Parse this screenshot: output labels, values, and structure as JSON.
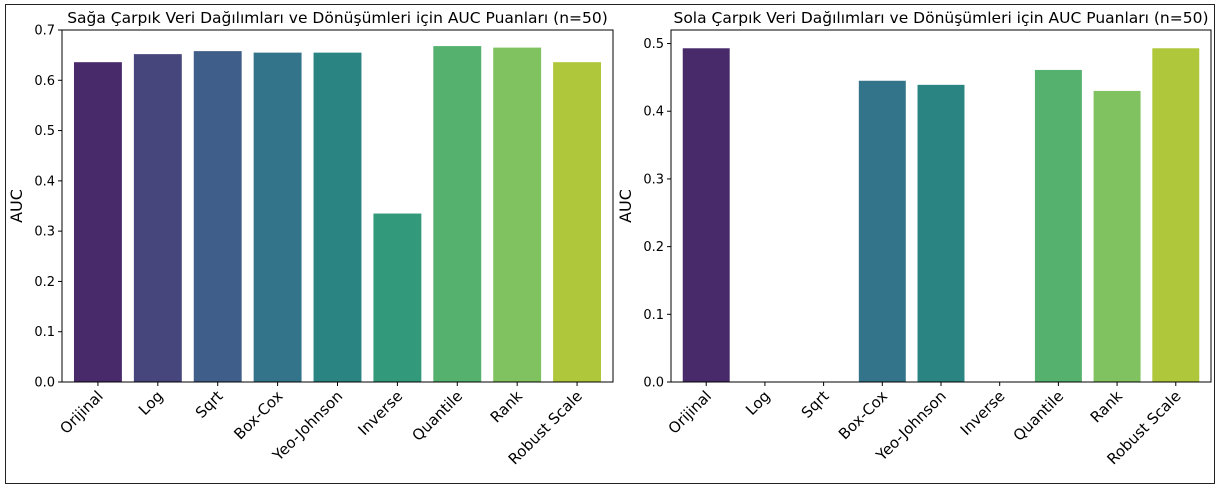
{
  "chart_data": [
    {
      "type": "bar",
      "title": "Sağa Çarpık Veri Dağılımları ve Dönüşümleri için AUC Puanları (n=50)",
      "xlabel": "",
      "ylabel": "AUC",
      "ylim": [
        0,
        0.7
      ],
      "yticks": [
        0.0,
        0.1,
        0.2,
        0.3,
        0.4,
        0.5,
        0.6,
        0.7
      ],
      "grid": false,
      "categories": [
        "Orijinal",
        "Log",
        "Sqrt",
        "Box-Cox",
        "Yeo-Johnson",
        "Inverse",
        "Quantile",
        "Rank",
        "Robust Scale"
      ],
      "values": [
        0.636,
        0.652,
        0.658,
        0.655,
        0.655,
        0.335,
        0.668,
        0.665,
        0.636
      ],
      "colors": [
        "#482a6a",
        "#46457c",
        "#3f5e8a",
        "#33748a",
        "#2a8582",
        "#32997a",
        "#55b16e",
        "#80c160",
        "#afc73a"
      ]
    },
    {
      "type": "bar",
      "title": "Sola Çarpık Veri Dağılımları ve Dönüşümleri için AUC Puanları (n=50)",
      "xlabel": "",
      "ylabel": "AUC",
      "ylim": [
        0,
        0.52
      ],
      "yticks": [
        0.0,
        0.1,
        0.2,
        0.3,
        0.4,
        0.5
      ],
      "grid": false,
      "categories": [
        "Orijinal",
        "Log",
        "Sqrt",
        "Box-Cox",
        "Yeo-Johnson",
        "Inverse",
        "Quantile",
        "Rank",
        "Robust Scale"
      ],
      "values": [
        0.493,
        0.0,
        0.0,
        0.445,
        0.439,
        0.0,
        0.461,
        0.43,
        0.493
      ],
      "colors": [
        "#482a6a",
        "#46457c",
        "#3f5e8a",
        "#33748a",
        "#2a8582",
        "#32997a",
        "#55b16e",
        "#80c160",
        "#afc73a"
      ]
    }
  ]
}
